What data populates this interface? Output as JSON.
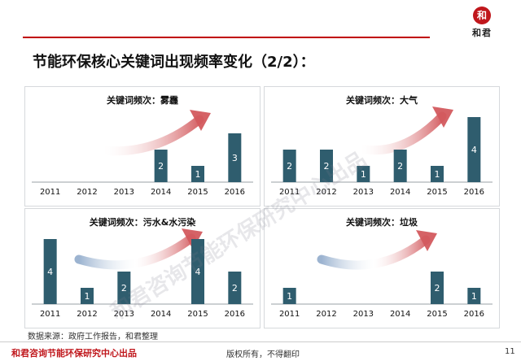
{
  "page_title": "节能环保核心关键词出现频率变化（2/2）：",
  "logo": {
    "seal_char": "和",
    "brand": "和君"
  },
  "watermark": "和君咨询节能环保研究中心出品",
  "source_note": "数据来源：政府工作报告，和君整理",
  "footer": {
    "left": "和君咨询节能环保研究中心出品",
    "center": "版权所有，不得翻印",
    "page_number": "11"
  },
  "colors": {
    "bar": "#2f5d6e",
    "accent": "#c0171c",
    "arrow_red": "#d35a5e",
    "arrow_blue": "#8aa6c8"
  },
  "chart_data": [
    {
      "type": "bar",
      "title": "关键词频次：雾霾",
      "categories": [
        "2011",
        "2012",
        "2013",
        "2014",
        "2015",
        "2016"
      ],
      "values": [
        0,
        0,
        0,
        2,
        1,
        3
      ],
      "labels": [
        "",
        "",
        "",
        "2",
        "1",
        "3"
      ],
      "arrow": "red-rising"
    },
    {
      "type": "bar",
      "title": "关键词频次：大气",
      "categories": [
        "2011",
        "2012",
        "2013",
        "2014",
        "2015",
        "2016"
      ],
      "values": [
        2,
        2,
        1,
        2,
        1,
        4
      ],
      "labels": [
        "2",
        "2",
        "1",
        "2",
        "1",
        "4"
      ],
      "arrow": "red-rising"
    },
    {
      "type": "bar",
      "title": "关键词频次：污水&水污染",
      "categories": [
        "2011",
        "2012",
        "2013",
        "2014",
        "2015",
        "2016"
      ],
      "values": [
        4,
        1,
        2,
        0,
        4,
        2
      ],
      "labels": [
        "4",
        "1",
        "2",
        "",
        "4",
        "2"
      ],
      "arrow": "blue-rising"
    },
    {
      "type": "bar",
      "title": "关键词频次：垃圾",
      "categories": [
        "2011",
        "2012",
        "2013",
        "2014",
        "2015",
        "2016"
      ],
      "values": [
        1,
        0,
        0,
        0,
        2,
        1
      ],
      "labels": [
        "1",
        "",
        "",
        "",
        "2",
        "1"
      ],
      "arrow": "blue-rising"
    }
  ]
}
